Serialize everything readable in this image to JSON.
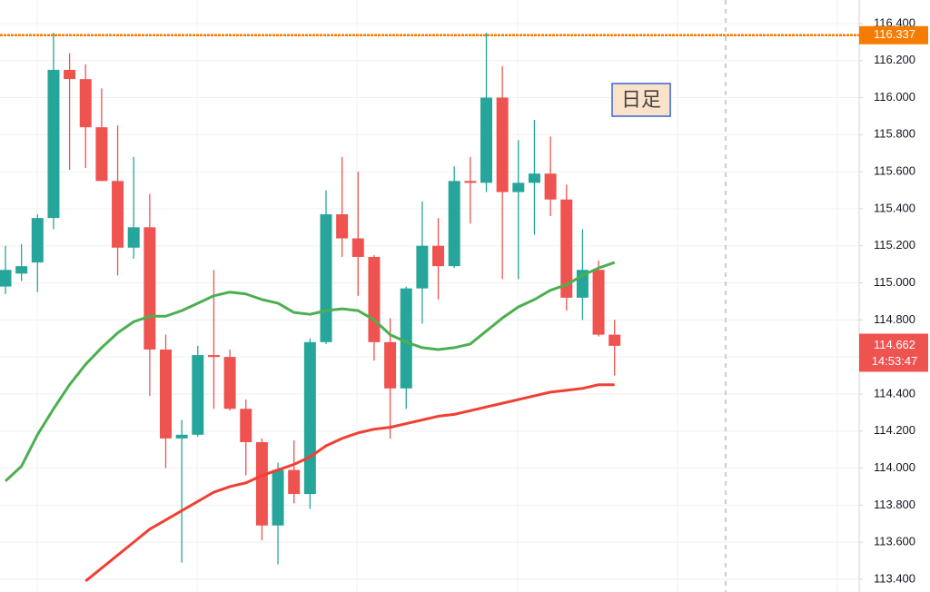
{
  "chart_data": {
    "type": "candlestick",
    "annotation": "日足",
    "up_color": "#26a69a",
    "down_color": "#ef5350",
    "open": [
      114.98,
      115.05,
      115.11,
      115.35,
      116.15,
      116.1,
      115.84,
      115.55,
      115.19,
      115.3,
      114.64,
      114.16,
      114.18,
      114.61,
      114.6,
      114.32,
      114.14,
      113.69,
      113.99,
      113.86,
      114.68,
      115.37,
      115.24,
      115.14,
      114.68,
      114.43,
      114.97,
      115.2,
      115.09,
      115.55,
      115.54,
      116.0,
      115.49,
      115.54,
      115.59,
      115.45,
      114.92,
      115.07,
      114.72
    ],
    "high": [
      115.2,
      115.21,
      115.37,
      116.35,
      116.24,
      116.18,
      116.05,
      115.85,
      115.68,
      115.48,
      114.72,
      114.26,
      114.66,
      115.07,
      114.64,
      114.37,
      114.16,
      114.03,
      114.15,
      114.7,
      115.5,
      115.68,
      115.6,
      115.15,
      114.81,
      114.98,
      115.44,
      115.35,
      115.63,
      115.68,
      116.35,
      116.17,
      115.77,
      115.88,
      115.79,
      115.53,
      115.29,
      115.12,
      114.8
    ],
    "low": [
      114.94,
      115.01,
      114.95,
      115.29,
      115.61,
      115.62,
      115.55,
      115.04,
      115.13,
      114.39,
      114.0,
      113.49,
      114.17,
      114.32,
      114.31,
      113.96,
      113.61,
      113.48,
      113.81,
      113.78,
      114.67,
      115.14,
      114.93,
      114.58,
      114.16,
      114.32,
      114.78,
      114.91,
      115.08,
      115.32,
      115.49,
      115.02,
      115.02,
      115.26,
      115.36,
      114.85,
      114.8,
      114.71,
      114.5
    ],
    "close": [
      115.07,
      115.09,
      115.35,
      116.15,
      116.1,
      115.84,
      115.55,
      115.19,
      115.3,
      114.64,
      114.16,
      114.18,
      114.61,
      114.6,
      114.32,
      114.14,
      113.69,
      113.99,
      113.86,
      114.68,
      115.37,
      115.24,
      115.14,
      114.68,
      114.43,
      114.97,
      115.2,
      115.09,
      115.55,
      115.54,
      116.0,
      115.49,
      115.54,
      115.59,
      115.45,
      114.92,
      115.07,
      114.72,
      114.66
    ],
    "lines": [
      {
        "color": "#4caf50",
        "values": [
          113.93,
          114.01,
          114.18,
          114.32,
          114.45,
          114.56,
          114.65,
          114.73,
          114.79,
          114.82,
          114.82,
          114.85,
          114.89,
          114.93,
          114.95,
          114.94,
          114.91,
          114.89,
          114.84,
          114.83,
          114.85,
          114.86,
          114.85,
          114.8,
          114.72,
          114.68,
          114.65,
          114.64,
          114.65,
          114.67,
          114.74,
          114.81,
          114.87,
          114.91,
          114.96,
          114.99,
          115.04,
          115.08,
          115.11
        ]
      },
      {
        "color": "#f23f33",
        "values": [
          null,
          null,
          null,
          null,
          null,
          113.39,
          113.46,
          113.53,
          113.6,
          113.67,
          113.72,
          113.77,
          113.82,
          113.87,
          113.9,
          113.92,
          113.96,
          113.99,
          114.02,
          114.06,
          114.12,
          114.16,
          114.19,
          114.21,
          114.22,
          114.24,
          114.26,
          114.28,
          114.29,
          114.31,
          114.33,
          114.35,
          114.37,
          114.39,
          114.41,
          114.42,
          114.43,
          114.45,
          114.45
        ]
      }
    ],
    "hline": {
      "value": 116.337,
      "color": "#f57c00"
    },
    "last_price": 114.662,
    "countdown": "14:53:47",
    "ylim": [
      113.331,
      116.527
    ],
    "yticks": [
      {
        "value": 113.4,
        "label": "113.400"
      },
      {
        "value": 113.6,
        "label": "113.600"
      },
      {
        "value": 113.8,
        "label": "113.800"
      },
      {
        "value": 114.0,
        "label": "114.000"
      },
      {
        "value": 114.2,
        "label": "114.200"
      },
      {
        "value": 114.4,
        "label": "114.400"
      },
      {
        "value": 114.6,
        "label": "114.600"
      },
      {
        "value": 114.8,
        "label": "114.800"
      },
      {
        "value": 115.0,
        "label": "115.000"
      },
      {
        "value": 115.2,
        "label": "115.200"
      },
      {
        "value": 115.4,
        "label": "115.400"
      },
      {
        "value": 115.6,
        "label": "115.600"
      },
      {
        "value": 115.8,
        "label": "115.800"
      },
      {
        "value": 116.0,
        "label": "116.000"
      },
      {
        "value": 116.2,
        "label": "116.200"
      },
      {
        "value": 116.4,
        "label": "116.400"
      }
    ],
    "grid": true
  }
}
